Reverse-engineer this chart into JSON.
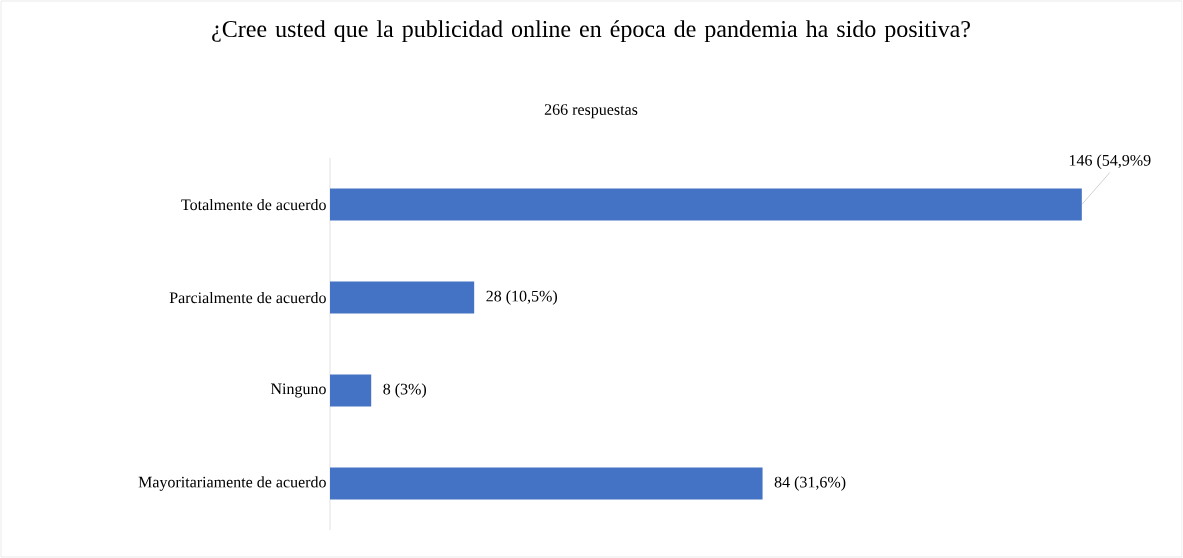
{
  "chart_data": {
    "type": "bar",
    "orientation": "horizontal",
    "title": "¿Cree usted que la publicidad online en época de pandemia ha sido positiva?",
    "subtitle": "266 respuestas",
    "categories": [
      "Totalmente de acuerdo",
      "Parcialmente de acuerdo",
      "Ninguno",
      "Mayoritariamente de acuerdo"
    ],
    "values": [
      146,
      28,
      8,
      84
    ],
    "value_labels": [
      "146 (54,9%9",
      "28 (10,5%)",
      "8 (3%)",
      "84 (31,6%)"
    ],
    "color": "#4472c4"
  }
}
